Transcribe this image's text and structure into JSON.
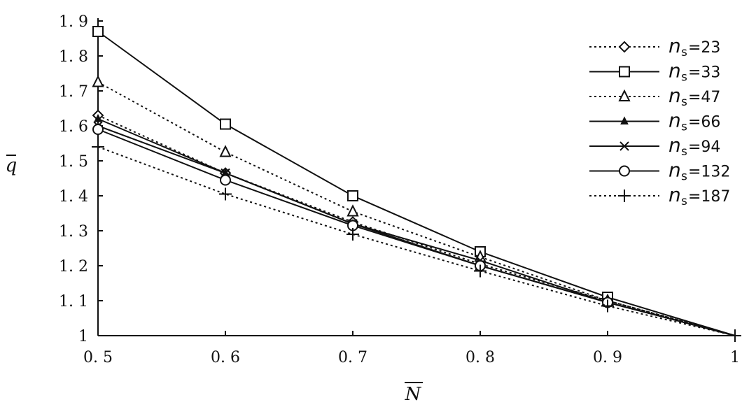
{
  "chart_data": {
    "type": "line",
    "title": "",
    "xlabel": "N",
    "ylabel": "q",
    "xlim": [
      0.5,
      1.0
    ],
    "ylim": [
      1.0,
      1.9
    ],
    "x_ticks": [
      "0. 5",
      "0. 6",
      "0. 7",
      "0. 8",
      "0. 9",
      "1"
    ],
    "y_ticks": [
      "1",
      "1. 1",
      "1. 2",
      "1. 3",
      "1. 4",
      "1. 5",
      "1. 6",
      "1. 7",
      "1. 8",
      "1. 9"
    ],
    "grid": false,
    "legend_position": "top-right",
    "x": [
      0.5,
      0.6,
      0.7,
      0.8,
      0.9,
      1.0
    ],
    "series": [
      {
        "legend_symbol": "n",
        "legend_sub": "s",
        "legend_value": "=23",
        "marker": "diamond",
        "line_style": "dotted",
        "color": "#111111",
        "values": [
          1.63,
          1.465,
          1.325,
          1.205,
          1.1,
          1.0
        ]
      },
      {
        "legend_symbol": "n",
        "legend_sub": "s",
        "legend_value": "=33",
        "marker": "square",
        "line_style": "solid",
        "color": "#111111",
        "values": [
          1.87,
          1.605,
          1.4,
          1.24,
          1.11,
          1.0
        ]
      },
      {
        "legend_symbol": "n",
        "legend_sub": "s",
        "legend_value": "=47",
        "marker": "triangle",
        "line_style": "dotted",
        "color": "#111111",
        "values": [
          1.725,
          1.525,
          1.355,
          1.225,
          1.1,
          1.0
        ]
      },
      {
        "legend_symbol": "n",
        "legend_sub": "s",
        "legend_value": "=66",
        "marker": "filled-triangle",
        "line_style": "solid",
        "color": "#111111",
        "values": [
          1.62,
          1.465,
          1.32,
          1.2,
          1.095,
          1.0
        ]
      },
      {
        "legend_symbol": "n",
        "legend_sub": "s",
        "legend_value": "=94",
        "marker": "asterisk",
        "line_style": "solid",
        "color": "#111111",
        "values": [
          1.6,
          1.465,
          1.32,
          1.215,
          1.095,
          1.0
        ]
      },
      {
        "legend_symbol": "n",
        "legend_sub": "s",
        "legend_value": "=132",
        "marker": "circle",
        "line_style": "solid",
        "color": "#111111",
        "values": [
          1.59,
          1.445,
          1.315,
          1.2,
          1.095,
          1.0
        ]
      },
      {
        "legend_symbol": "n",
        "legend_sub": "s",
        "legend_value": "=187",
        "marker": "plus",
        "line_style": "dotted",
        "color": "#111111",
        "values": [
          1.54,
          1.405,
          1.29,
          1.185,
          1.085,
          1.0
        ]
      }
    ]
  }
}
